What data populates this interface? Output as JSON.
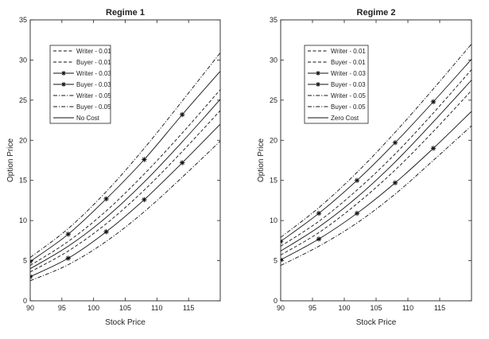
{
  "chart_data": [
    {
      "type": "line",
      "title": "Regime 1",
      "xlabel": "Stock Price",
      "ylabel": "Option Price",
      "xlim": [
        90,
        120
      ],
      "ylim": [
        0,
        35
      ],
      "xticks": [
        90,
        95,
        100,
        105,
        110,
        115
      ],
      "yticks": [
        0,
        5,
        10,
        15,
        20,
        25,
        30,
        35
      ],
      "grid": false,
      "legend_position": "top-left",
      "series": [
        {
          "name": "Writer - 0.01",
          "style": "dashed",
          "marker": "none",
          "x": [
            90,
            96,
            102,
            108,
            114,
            120
          ],
          "y": [
            4.4,
            7.4,
            11.2,
            15.8,
            20.9,
            26.3
          ]
        },
        {
          "name": "Buyer - 0.01",
          "style": "dashed",
          "marker": "none",
          "x": [
            90,
            96,
            102,
            108,
            114,
            120
          ],
          "y": [
            3.6,
            6.2,
            9.6,
            13.8,
            18.6,
            23.7
          ]
        },
        {
          "name": "Writer - 0.03",
          "style": "solid",
          "marker": "star",
          "x": [
            90,
            96,
            102,
            108,
            114,
            120
          ],
          "y": [
            4.9,
            8.3,
            12.7,
            17.6,
            23.2,
            28.6
          ]
        },
        {
          "name": "Buyer - 0.03",
          "style": "solid",
          "marker": "star",
          "x": [
            90,
            96,
            102,
            108,
            114,
            120
          ],
          "y": [
            3.0,
            5.3,
            8.6,
            12.6,
            17.2,
            22.0
          ]
        },
        {
          "name": "Writer - 0.05",
          "style": "dashdot",
          "marker": "none",
          "x": [
            90,
            96,
            102,
            108,
            114,
            120
          ],
          "y": [
            5.4,
            9.0,
            13.6,
            19.0,
            24.9,
            30.9
          ]
        },
        {
          "name": "Buyer - 0.05",
          "style": "dashdot",
          "marker": "none",
          "x": [
            90,
            96,
            102,
            108,
            114,
            120
          ],
          "y": [
            2.5,
            4.5,
            7.4,
            11.1,
            15.4,
            19.9
          ]
        },
        {
          "name": "No Cost",
          "style": "solid",
          "marker": "none",
          "x": [
            90,
            96,
            102,
            108,
            114,
            120
          ],
          "y": [
            4.0,
            6.8,
            10.4,
            14.8,
            19.8,
            25.1
          ]
        }
      ]
    },
    {
      "type": "line",
      "title": "Regime 2",
      "xlabel": "Stock Price",
      "ylabel": "Option Price",
      "xlim": [
        90,
        120
      ],
      "ylim": [
        0,
        35
      ],
      "xticks": [
        90,
        95,
        100,
        105,
        110,
        115
      ],
      "yticks": [
        0,
        5,
        10,
        15,
        20,
        25,
        30,
        35
      ],
      "grid": false,
      "legend_position": "top-left",
      "series": [
        {
          "name": "Writer - 0.01",
          "style": "dashed",
          "marker": "none",
          "x": [
            90,
            96,
            102,
            108,
            114,
            120
          ],
          "y": [
            6.8,
            9.9,
            13.8,
            18.3,
            23.4,
            28.8
          ]
        },
        {
          "name": "Buyer - 0.01",
          "style": "dashed",
          "marker": "none",
          "x": [
            90,
            96,
            102,
            108,
            114,
            120
          ],
          "y": [
            5.7,
            8.5,
            12.1,
            16.3,
            21.1,
            26.2
          ]
        },
        {
          "name": "Writer - 0.03",
          "style": "solid",
          "marker": "star",
          "x": [
            90,
            96,
            102,
            108,
            114,
            120
          ],
          "y": [
            7.4,
            10.9,
            15.0,
            19.7,
            24.8,
            30.1
          ]
        },
        {
          "name": "Buyer - 0.03",
          "style": "solid",
          "marker": "star",
          "x": [
            90,
            96,
            102,
            108,
            114,
            120
          ],
          "y": [
            5.1,
            7.7,
            10.9,
            14.7,
            19.0,
            23.6
          ]
        },
        {
          "name": "Writer - 0.05",
          "style": "dashdot",
          "marker": "none",
          "x": [
            90,
            96,
            102,
            108,
            114,
            120
          ],
          "y": [
            7.9,
            11.6,
            16.0,
            21.0,
            26.4,
            32.0
          ]
        },
        {
          "name": "Buyer - 0.05",
          "style": "dashdot",
          "marker": "none",
          "x": [
            90,
            96,
            102,
            108,
            114,
            120
          ],
          "y": [
            4.4,
            6.8,
            9.7,
            13.3,
            17.5,
            21.8
          ]
        },
        {
          "name": "Zero Cost",
          "style": "solid",
          "marker": "none",
          "x": [
            90,
            96,
            102,
            108,
            114,
            120
          ],
          "y": [
            6.2,
            9.2,
            12.9,
            17.3,
            22.3,
            27.5
          ]
        }
      ]
    }
  ]
}
